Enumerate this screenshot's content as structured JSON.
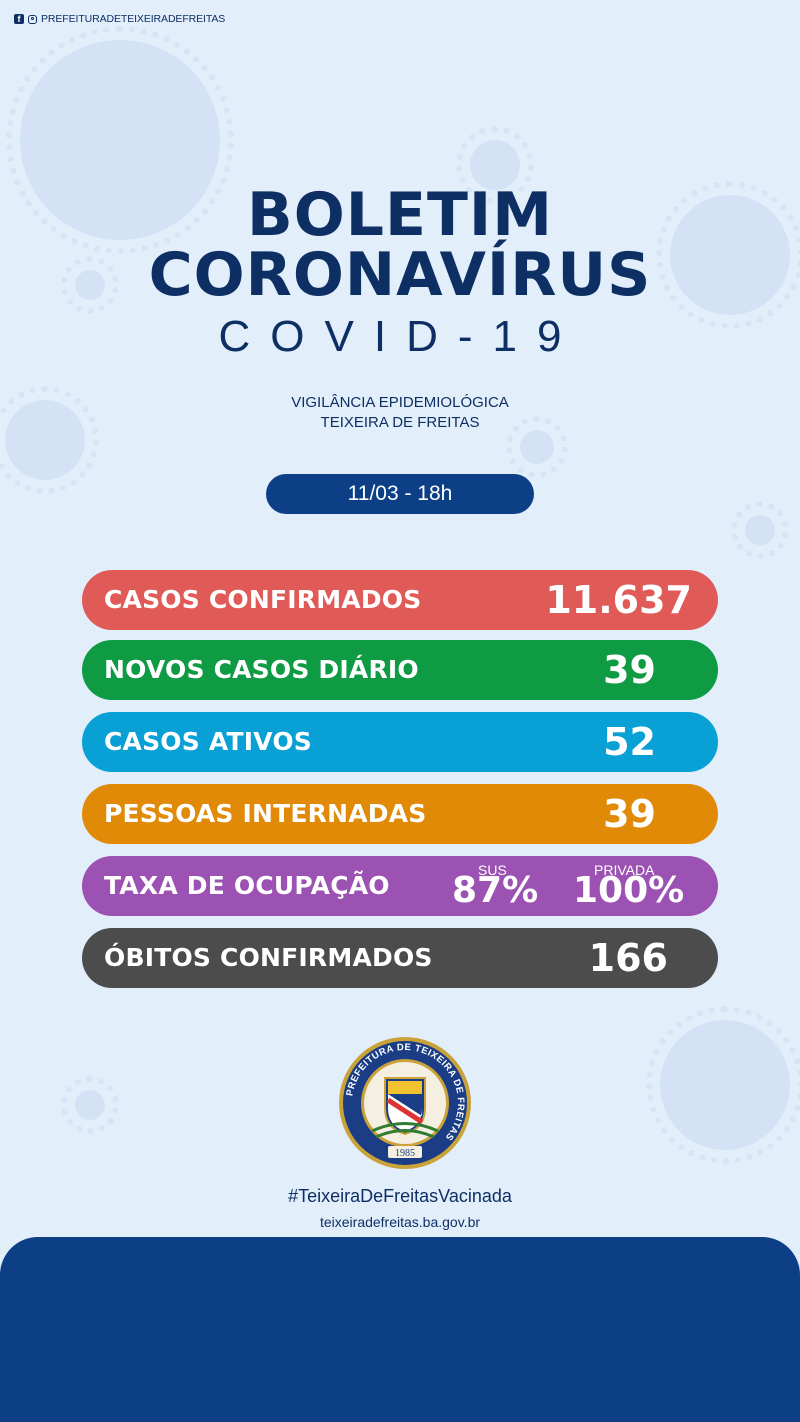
{
  "header": {
    "social_handle": "PREFEITURADETEIXEIRADEFREITAS"
  },
  "title": {
    "line1": "BOLETIM",
    "line2": "CORONAVÍRUS",
    "line3": "COVID-19"
  },
  "subtitle": {
    "line1": "VIGILÂNCIA EPIDEMIOLÓGICA",
    "line2": "TEIXEIRA DE FREITAS"
  },
  "date": "11/03 - 18h",
  "stats": {
    "confirmed": {
      "label": "CASOS CONFIRMADOS",
      "value": "11.637",
      "color": "#e05a57"
    },
    "new_daily": {
      "label": "NOVOS CASOS DIÁRIO",
      "value": "39",
      "color": "#0e9b44"
    },
    "active": {
      "label": "CASOS ATIVOS",
      "value": "52",
      "color": "#08a0d5"
    },
    "hospitalized": {
      "label": "PESSOAS INTERNADAS",
      "value": "39",
      "color": "#e18a07"
    },
    "occupancy": {
      "label": "TAXA DE OCUPAÇÃO",
      "sus_label": "SUS",
      "sus_value": "87%",
      "private_label": "PRIVADA",
      "private_value": "100%",
      "color": "#9b52b3"
    },
    "deaths": {
      "label": "ÓBITOS CONFIRMADOS",
      "value": "166",
      "color": "#4c4c4c"
    }
  },
  "seal": {
    "ring_text": "PREFEITURA DE TEIXEIRA DE FREITAS",
    "year": "1985"
  },
  "footer": {
    "hashtag": "#TeixeiraDeFreitasVacinada",
    "website": "teixeiradefreitas.ba.gov.br"
  }
}
